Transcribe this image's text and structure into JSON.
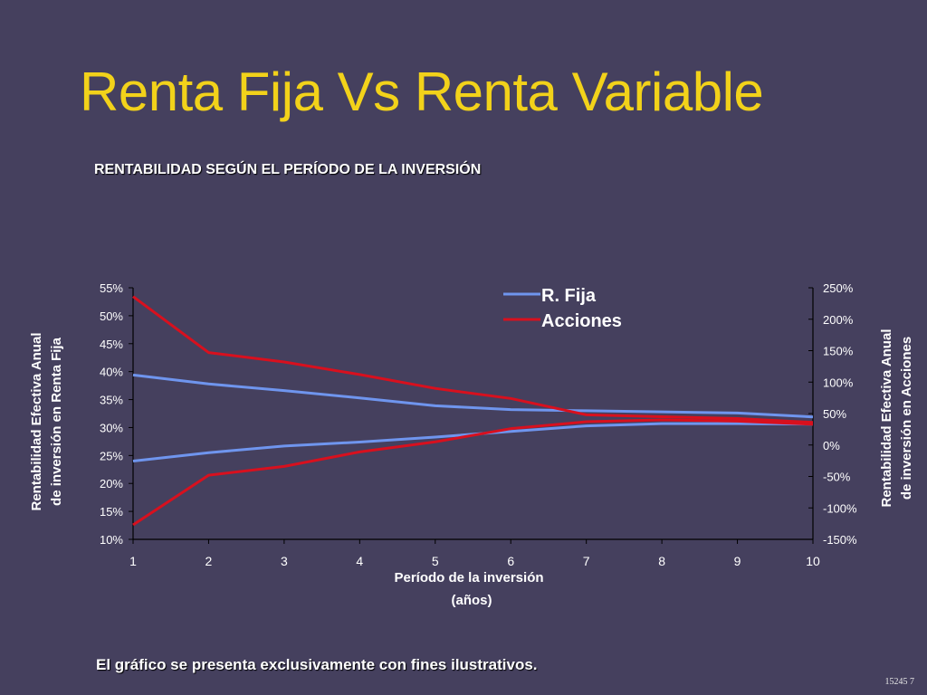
{
  "slide": {
    "title": "Renta Fija Vs Renta Variable",
    "subtitle": "RENTABILIDAD SEGÚN EL PERÍODO DE LA INVERSIÓN",
    "footnote": "El gráfico se presenta exclusivamente con fines ilustrativos.",
    "code": "15245 7"
  },
  "colors": {
    "background": "#45405e",
    "title": "#f2d21a",
    "renta_fija": "#6f95ee",
    "acciones": "#d8101e"
  },
  "chart_data": {
    "type": "line",
    "x": [
      1,
      2,
      3,
      4,
      5,
      6,
      7,
      8,
      9,
      10
    ],
    "x_tick_labels": [
      "1",
      "2",
      "3",
      "4",
      "5",
      "6",
      "7",
      "8",
      "9",
      "10"
    ],
    "xlabel_line1": "Período de la inversión",
    "xlabel_line2": "(años)",
    "ylabel_left_line1": "Rentabilidad Efectiva Anual",
    "ylabel_left_line2": "de inversión en Renta Fija",
    "ylabel_right_line1": "Rentabilidad Efectiva Anual",
    "ylabel_right_line2": "de inversión en Acciones",
    "ylim_left": [
      10,
      55
    ],
    "ylim_right": [
      -150,
      250
    ],
    "y_left_ticks": [
      "10%",
      "15%",
      "20%",
      "25%",
      "30%",
      "35%",
      "40%",
      "45%",
      "50%",
      "55%"
    ],
    "y_right_ticks": [
      "-150%",
      "-100%",
      "-50%",
      "0%",
      "50%",
      "100%",
      "150%",
      "200%",
      "250%"
    ],
    "legend_position": "top-right",
    "grid": false,
    "series": [
      {
        "name": "R. Fija",
        "axis": "left",
        "band": "upper",
        "values": [
          39.4,
          37.8,
          36.6,
          35.3,
          33.9,
          33.2,
          33.0,
          32.8,
          32.6,
          31.9
        ]
      },
      {
        "name": "R. Fija",
        "axis": "left",
        "band": "lower",
        "values": [
          24.0,
          25.5,
          26.7,
          27.4,
          28.3,
          29.3,
          30.3,
          30.7,
          30.7,
          30.6
        ]
      },
      {
        "name": "Acciones",
        "axis": "right",
        "band": "upper",
        "values": [
          236,
          147,
          132,
          112,
          90,
          74,
          48,
          45,
          42,
          36
        ]
      },
      {
        "name": "Acciones",
        "axis": "right",
        "band": "lower",
        "values": [
          -127,
          -48,
          -34,
          -11,
          5,
          26,
          37,
          40,
          38,
          33
        ]
      }
    ]
  }
}
